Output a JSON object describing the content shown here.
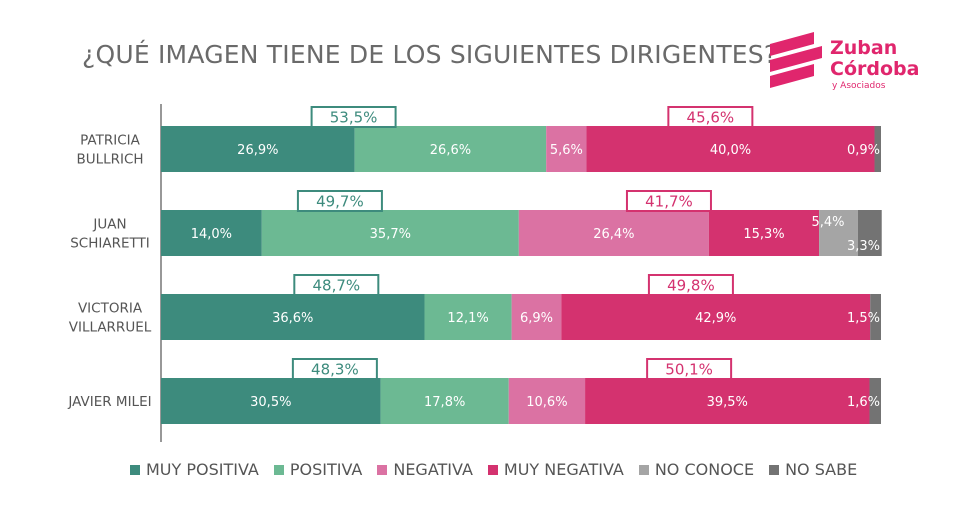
{
  "title": "¿QUÉ IMAGEN TIENE DE LOS SIGUIENTES DIRIGENTES?",
  "logo": {
    "line1": "Zuban",
    "line2": "Córdoba",
    "sub": "y Asociados",
    "color": "#e0266d"
  },
  "colors": {
    "muy_positiva": "#3d8b7d",
    "positiva": "#6cb993",
    "negativa": "#db72a3",
    "muy_negativa": "#d4326f",
    "no_conoce": "#a5a5a5",
    "no_sabe": "#737373"
  },
  "legend": [
    {
      "key": "muy_positiva",
      "label": "MUY POSITIVA"
    },
    {
      "key": "positiva",
      "label": "POSITIVA"
    },
    {
      "key": "negativa",
      "label": "NEGATIVA"
    },
    {
      "key": "muy_negativa",
      "label": "MUY NEGATIVA"
    },
    {
      "key": "no_conoce",
      "label": "NO CONOCE"
    },
    {
      "key": "no_sabe",
      "label": "NO SABE"
    }
  ],
  "chart_data": {
    "type": "bar",
    "orientation": "horizontal",
    "stacked": true,
    "title": "¿QUÉ IMAGEN TIENE DE LOS SIGUIENTES DIRIGENTES?",
    "categories": [
      [
        "PATRICIA",
        "BULLRICH"
      ],
      [
        "JUAN",
        "SCHIARETTI"
      ],
      [
        "VICTORIA",
        "VILLARRUEL"
      ],
      [
        "JAVIER MILEI"
      ]
    ],
    "series": [
      {
        "key": "muy_positiva",
        "name": "MUY POSITIVA",
        "values": [
          26.9,
          14.0,
          36.6,
          30.5
        ],
        "labels": [
          "26,9%",
          "14,0%",
          "36,6%",
          "30,5%"
        ]
      },
      {
        "key": "positiva",
        "name": "POSITIVA",
        "values": [
          26.6,
          35.7,
          12.1,
          17.8
        ],
        "labels": [
          "26,6%",
          "35,7%",
          "12,1%",
          "17,8%"
        ]
      },
      {
        "key": "negativa",
        "name": "NEGATIVA",
        "values": [
          5.6,
          26.4,
          6.9,
          10.6
        ],
        "labels": [
          "5,6%",
          "26,4%",
          "6,9%",
          "10,6%"
        ]
      },
      {
        "key": "muy_negativa",
        "name": "MUY NEGATIVA",
        "values": [
          40.0,
          15.3,
          42.9,
          39.5
        ],
        "labels": [
          "40,0%",
          "15,3%",
          "42,9%",
          "39,5%"
        ]
      },
      {
        "key": "no_conoce",
        "name": "NO CONOCE",
        "values": [
          0,
          5.4,
          0,
          0
        ],
        "labels": [
          "",
          "5,4%",
          "",
          ""
        ]
      },
      {
        "key": "no_sabe",
        "name": "NO SABE",
        "values": [
          0.9,
          3.3,
          1.5,
          1.6
        ],
        "labels": [
          "0,9%",
          "3,3%",
          "1,5%",
          "1,6%"
        ]
      }
    ],
    "totals": {
      "positive": {
        "values": [
          53.5,
          49.7,
          48.7,
          48.3
        ],
        "labels": [
          "53,5%",
          "49,7%",
          "48,7%",
          "48,3%"
        ]
      },
      "negative": {
        "values": [
          45.6,
          41.7,
          49.8,
          50.1
        ],
        "labels": [
          "45,6%",
          "41,7%",
          "49,8%",
          "50,1%"
        ]
      }
    },
    "xlim": [
      0,
      100
    ],
    "legend_position": "bottom",
    "grid": false
  }
}
